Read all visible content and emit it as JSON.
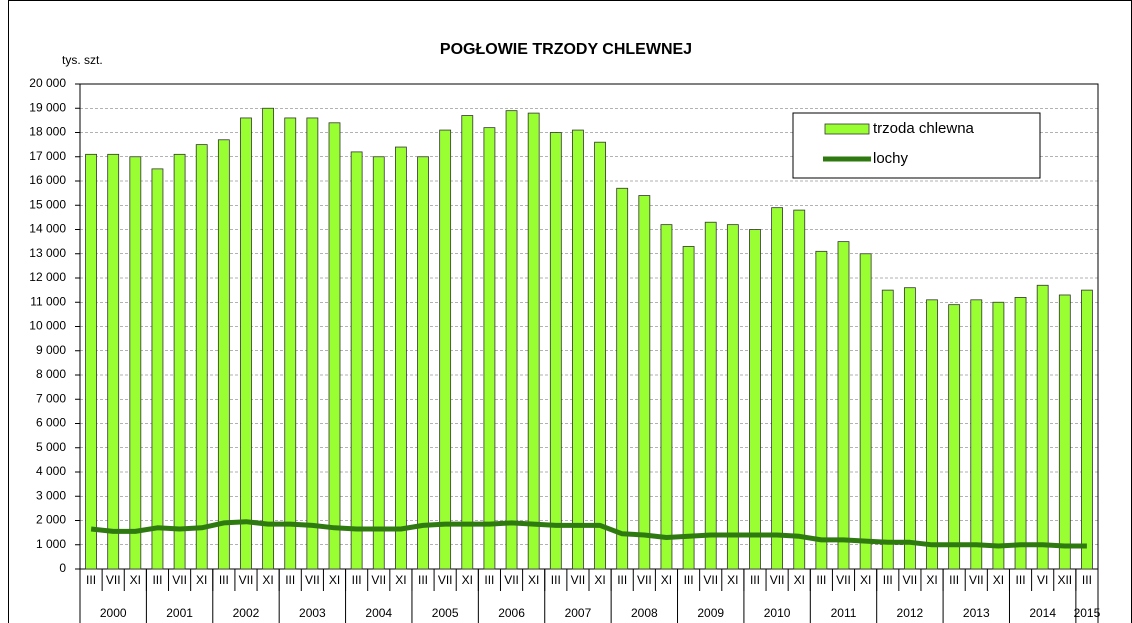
{
  "chart_data": {
    "type": "bar",
    "title": "POGŁOWIE TRZODY  CHLEWNEJ",
    "y_axis_label": "tys. szt.",
    "categories": [
      "III",
      "VII",
      "XI",
      "III",
      "VII",
      "XI",
      "III",
      "VII",
      "XI",
      "III",
      "VII",
      "XI",
      "III",
      "VII",
      "XI",
      "III",
      "VII",
      "XI",
      "III",
      "VII",
      "XI",
      "III",
      "VII",
      "XI",
      "III",
      "VII",
      "XI",
      "III",
      "VII",
      "XI",
      "III",
      "VII",
      "XI",
      "III",
      "VII",
      "XI",
      "III",
      "VII",
      "XI",
      "III",
      "VII",
      "XI",
      "III",
      "VI",
      "XII",
      "III"
    ],
    "years": [
      "2000",
      null,
      null,
      "2001",
      null,
      null,
      "2002",
      null,
      null,
      "2003",
      null,
      null,
      "2004",
      null,
      null,
      "2005",
      null,
      null,
      "2006",
      null,
      null,
      "2007",
      null,
      null,
      "2008",
      null,
      null,
      "2009",
      null,
      null,
      "2010",
      null,
      null,
      "2011",
      null,
      null,
      "2012",
      null,
      null,
      "2013",
      null,
      null,
      "2014",
      null,
      null,
      "2015"
    ],
    "series": [
      {
        "name": "trzoda chlewna",
        "type": "bar",
        "color": "#99ff33",
        "values": [
          17100,
          17100,
          17000,
          16500,
          17100,
          17500,
          17700,
          18600,
          19000,
          18600,
          18600,
          18400,
          17200,
          17000,
          17400,
          17000,
          18100,
          18700,
          18200,
          18900,
          18800,
          18000,
          18100,
          17600,
          15700,
          15400,
          14200,
          13300,
          14300,
          14200,
          14000,
          14900,
          14800,
          13100,
          13500,
          13000,
          11500,
          11600,
          11100,
          10900,
          11100,
          11000,
          11200,
          11700,
          11300,
          11500
        ]
      },
      {
        "name": "lochy",
        "type": "line",
        "color": "#2f7a10",
        "values": [
          1650,
          1550,
          1550,
          1700,
          1650,
          1700,
          1900,
          1950,
          1850,
          1850,
          1800,
          1700,
          1650,
          1650,
          1650,
          1800,
          1850,
          1850,
          1850,
          1900,
          1850,
          1800,
          1800,
          1800,
          1450,
          1400,
          1300,
          1350,
          1400,
          1400,
          1400,
          1400,
          1350,
          1200,
          1200,
          1150,
          1100,
          1100,
          1000,
          1000,
          1000,
          950,
          1000,
          1000,
          950,
          950
        ]
      }
    ],
    "ylim": [
      0,
      20000
    ],
    "yticks": [
      0,
      {
        "value": 1000,
        "label": "1 000"
      },
      {
        "value": 2000,
        "label": "2 000"
      },
      {
        "value": 3000,
        "label": "3 000"
      },
      {
        "value": 4000,
        "label": "4 000"
      },
      {
        "value": 5000,
        "label": "5 000"
      },
      {
        "value": 6000,
        "label": "6 000"
      },
      {
        "value": 7000,
        "label": "7 000"
      },
      {
        "value": 8000,
        "label": "8 000"
      },
      {
        "value": 9000,
        "label": "9 000"
      },
      {
        "value": 10000,
        "label": "10 000"
      },
      {
        "value": 11000,
        "label": "11 000"
      },
      {
        "value": 12000,
        "label": "12 000"
      },
      {
        "value": 13000,
        "label": "13 000"
      },
      {
        "value": 14000,
        "label": "14 000"
      },
      {
        "value": 15000,
        "label": "15 000"
      },
      {
        "value": 16000,
        "label": "16 000"
      },
      {
        "value": 17000,
        "label": "17 000"
      },
      {
        "value": 18000,
        "label": "18 000"
      },
      {
        "value": 19000,
        "label": "19 000"
      },
      {
        "value": 20000,
        "label": "20 000"
      }
    ],
    "grid": true,
    "legend": "top-right"
  }
}
